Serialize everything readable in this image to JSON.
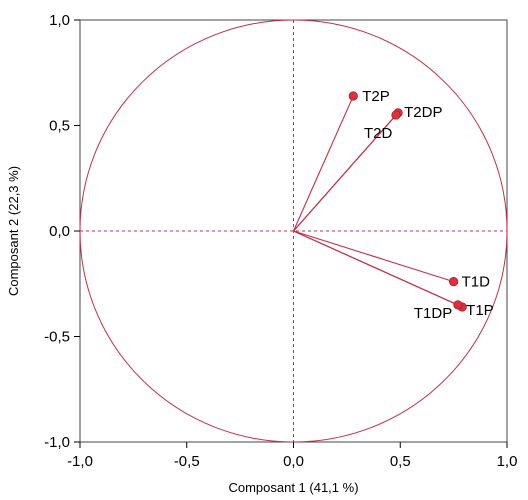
{
  "chart_data": {
    "type": "scatter",
    "title": "",
    "xlabel": "Composant 1  (41,1 %)",
    "ylabel": "Composant 2  (22,3 %)",
    "xlim": [
      -1.0,
      1.0
    ],
    "ylim": [
      -1.0,
      1.0
    ],
    "x_ticks": [
      "-1,0",
      "-0,5",
      "0,0",
      "0,5",
      "1,0"
    ],
    "y_ticks": [
      "1,0",
      "0,5",
      "0,0",
      "-0,5",
      "-1,0"
    ],
    "unit_circle": true,
    "vectors_from_origin": true,
    "grid": false,
    "zero_lines": "dashed",
    "colors": {
      "accent": "#c0304a",
      "point": "#e0303c",
      "axis": "#000000"
    },
    "points": [
      {
        "label": "T2P",
        "x": 0.28,
        "y": 0.64
      },
      {
        "label": "T2DP",
        "x": 0.49,
        "y": 0.56
      },
      {
        "label": "T2D",
        "x": 0.48,
        "y": 0.55
      },
      {
        "label": "T1D",
        "x": 0.75,
        "y": -0.24
      },
      {
        "label": "T1P",
        "x": 0.79,
        "y": -0.36
      },
      {
        "label": "T1DP",
        "x": 0.77,
        "y": -0.35
      }
    ]
  }
}
